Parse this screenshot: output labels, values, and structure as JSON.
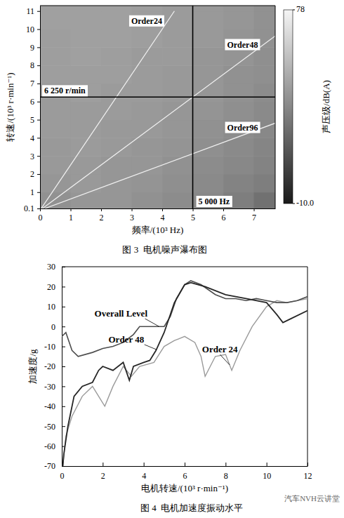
{
  "chart_data": [
    {
      "type": "heatmap",
      "title": "图 3  电机噪声瀑布图",
      "x_label": "频率/(10³ Hz)",
      "y_label": "转速/(10³ r·min⁻¹)",
      "xlim": [
        0,
        7.7
      ],
      "xticks": [
        0,
        1,
        2,
        3,
        4,
        5,
        6,
        7
      ],
      "ylim": [
        0.1,
        11.3
      ],
      "yticks": [
        0.1,
        1,
        2,
        3,
        4,
        5,
        6,
        7,
        8,
        9,
        10,
        11
      ],
      "x_edges": [
        0,
        1,
        2,
        3,
        4,
        5,
        6,
        7,
        7.7
      ],
      "y_edges": [
        0.1,
        1,
        2,
        3,
        4,
        5,
        6,
        7,
        8,
        9,
        10,
        11,
        11.3
      ],
      "cells": [
        [
          38,
          40,
          40,
          38,
          36,
          34,
          30,
          25
        ],
        [
          40,
          41,
          40,
          39,
          37,
          35,
          32,
          30
        ],
        [
          41,
          41,
          40,
          40,
          38,
          36,
          34,
          32
        ],
        [
          41,
          42,
          41,
          40,
          39,
          37,
          35,
          33
        ],
        [
          42,
          42,
          41,
          41,
          40,
          38,
          36,
          34
        ],
        [
          42,
          42,
          42,
          41,
          40,
          39,
          37,
          35
        ],
        [
          42,
          43,
          42,
          42,
          41,
          40,
          38,
          36
        ],
        [
          43,
          43,
          43,
          42,
          41,
          40,
          38,
          37
        ],
        [
          43,
          44,
          43,
          42,
          42,
          40,
          39,
          37
        ],
        [
          43,
          44,
          44,
          43,
          42,
          41,
          39,
          38
        ],
        [
          44,
          44,
          44,
          43,
          42,
          41,
          40,
          38
        ],
        [
          44,
          44,
          44,
          43,
          42,
          41,
          40,
          38
        ]
      ],
      "colorbar": {
        "label": "声压级/dB(A)",
        "range": [
          -10,
          78
        ],
        "ticks": [
          78,
          {
            "value": -10,
            "label": "-10.0"
          }
        ]
      },
      "series": [
        {
          "name": "Order24",
          "color": "#f0f0f0",
          "x": [
            0.04,
            4.4
          ],
          "values": [
            0.1,
            11
          ]
        },
        {
          "name": "Order48",
          "color": "#f0f0f0",
          "x": [
            0.08,
            7.7
          ],
          "values": [
            0.1,
            9.625
          ]
        },
        {
          "name": "Order96",
          "color": "#f0f0f0",
          "x": [
            0.16,
            7.7
          ],
          "values": [
            0.1,
            4.81
          ]
        }
      ],
      "annotations": [
        {
          "text": "6 250 r/min",
          "y": 6.25
        },
        {
          "text": "5 000 Hz",
          "x": 5
        }
      ]
    },
    {
      "type": "line",
      "title": "图 4  电机加速度振动水平",
      "x_label": "电机转速/(10³ r·min⁻¹)",
      "y_label": "加速度/g",
      "xlim": [
        0,
        12
      ],
      "xticks": [
        0,
        2,
        4,
        6,
        8,
        10,
        12
      ],
      "ylim": [
        -70,
        30
      ],
      "yticks": [
        -70,
        -60,
        -50,
        -40,
        -30,
        -20,
        -10,
        0,
        10,
        20,
        30
      ],
      "grid": false,
      "series": [
        {
          "name": "Order 24",
          "color": "#9a9a9a",
          "x": [
            0.05,
            0.2,
            0.5,
            1,
            1.5,
            1.8,
            2.1,
            2.5,
            3,
            3.4,
            3.8,
            4.5,
            5,
            5.5,
            6,
            6.5,
            6.8,
            7,
            7.5,
            8,
            8.3,
            8.7,
            9.3,
            10,
            10.5,
            11,
            12
          ],
          "values": [
            -70,
            -55,
            -45,
            -35,
            -30,
            -35,
            -40,
            -30,
            -20,
            -25,
            -20,
            -18,
            -10,
            -7,
            -5,
            -8,
            -15,
            -25,
            -15,
            -14,
            -22,
            -12,
            0,
            10,
            13,
            12,
            14
          ]
        },
        {
          "name": "Overall Level",
          "color": "#4d4d4d",
          "x": [
            0,
            0.2,
            0.5,
            0.8,
            1.5,
            2,
            2.5,
            3,
            3.5,
            3.8,
            4.5,
            5,
            5.3,
            5.6,
            6,
            6.3,
            6.8,
            7.5,
            8,
            8.5,
            9,
            9.5,
            10,
            10.5,
            11,
            11.5,
            12
          ],
          "values": [
            -5,
            -3,
            -12,
            -15,
            -13,
            -11,
            -10,
            -8,
            -4,
            0,
            0,
            0,
            5,
            14,
            21,
            23,
            21,
            16,
            14,
            14,
            13,
            14,
            13,
            12,
            12,
            13,
            15
          ]
        },
        {
          "name": "Order 48",
          "color": "#262626",
          "x": [
            0.05,
            0.1,
            0.3,
            0.6,
            1,
            1.5,
            1.8,
            2,
            2.5,
            3,
            3.3,
            3.5,
            4,
            4.3,
            4.6,
            5,
            5.5,
            6,
            6.3,
            7,
            8,
            9,
            10,
            10.5,
            10.8,
            11.2,
            12
          ],
          "values": [
            -70,
            -64,
            -50,
            -35,
            -30,
            -28,
            -22,
            -20,
            -22,
            -18,
            -27,
            -20,
            -18,
            -17,
            -12,
            -3,
            12,
            21,
            22,
            20,
            16,
            14,
            12,
            6,
            2,
            4,
            8
          ]
        }
      ]
    }
  ],
  "watermark": "汽车NVH云讲堂"
}
